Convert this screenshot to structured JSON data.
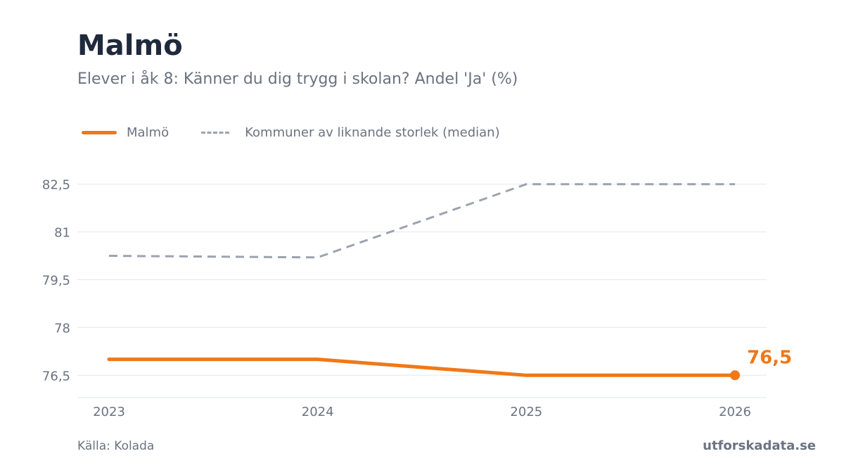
{
  "header": {
    "title": "Malmö",
    "subtitle": "Elever i åk 8: Känner du dig trygg i skolan? Andel 'Ja' (%)"
  },
  "footer": {
    "source": "Källa: Kolada",
    "brand": "utforskadata.se"
  },
  "chart_data": {
    "type": "line",
    "title": "Malmö",
    "subtitle": "Elever i åk 8: Känner du dig trygg i skolan? Andel 'Ja' (%)",
    "x": [
      "2023",
      "2024",
      "2025",
      "2026"
    ],
    "ylim": [
      75.8,
      83.2
    ],
    "yticks": [
      76.5,
      78,
      79.5,
      81,
      82.5
    ],
    "ytick_labels": [
      "76,5",
      "78",
      "79,5",
      "81",
      "82,5"
    ],
    "grid": true,
    "legend_position": "top-left",
    "series": [
      {
        "name": "Malmö",
        "values": [
          77.0,
          77.0,
          76.5,
          76.5
        ],
        "color": "#f07818",
        "style": "solid",
        "end_label": "76,5"
      },
      {
        "name": "Kommuner av liknande storlek (median)",
        "values": [
          80.25,
          80.2,
          82.5,
          82.5
        ],
        "color": "#9ca3af",
        "style": "dashed"
      }
    ]
  }
}
